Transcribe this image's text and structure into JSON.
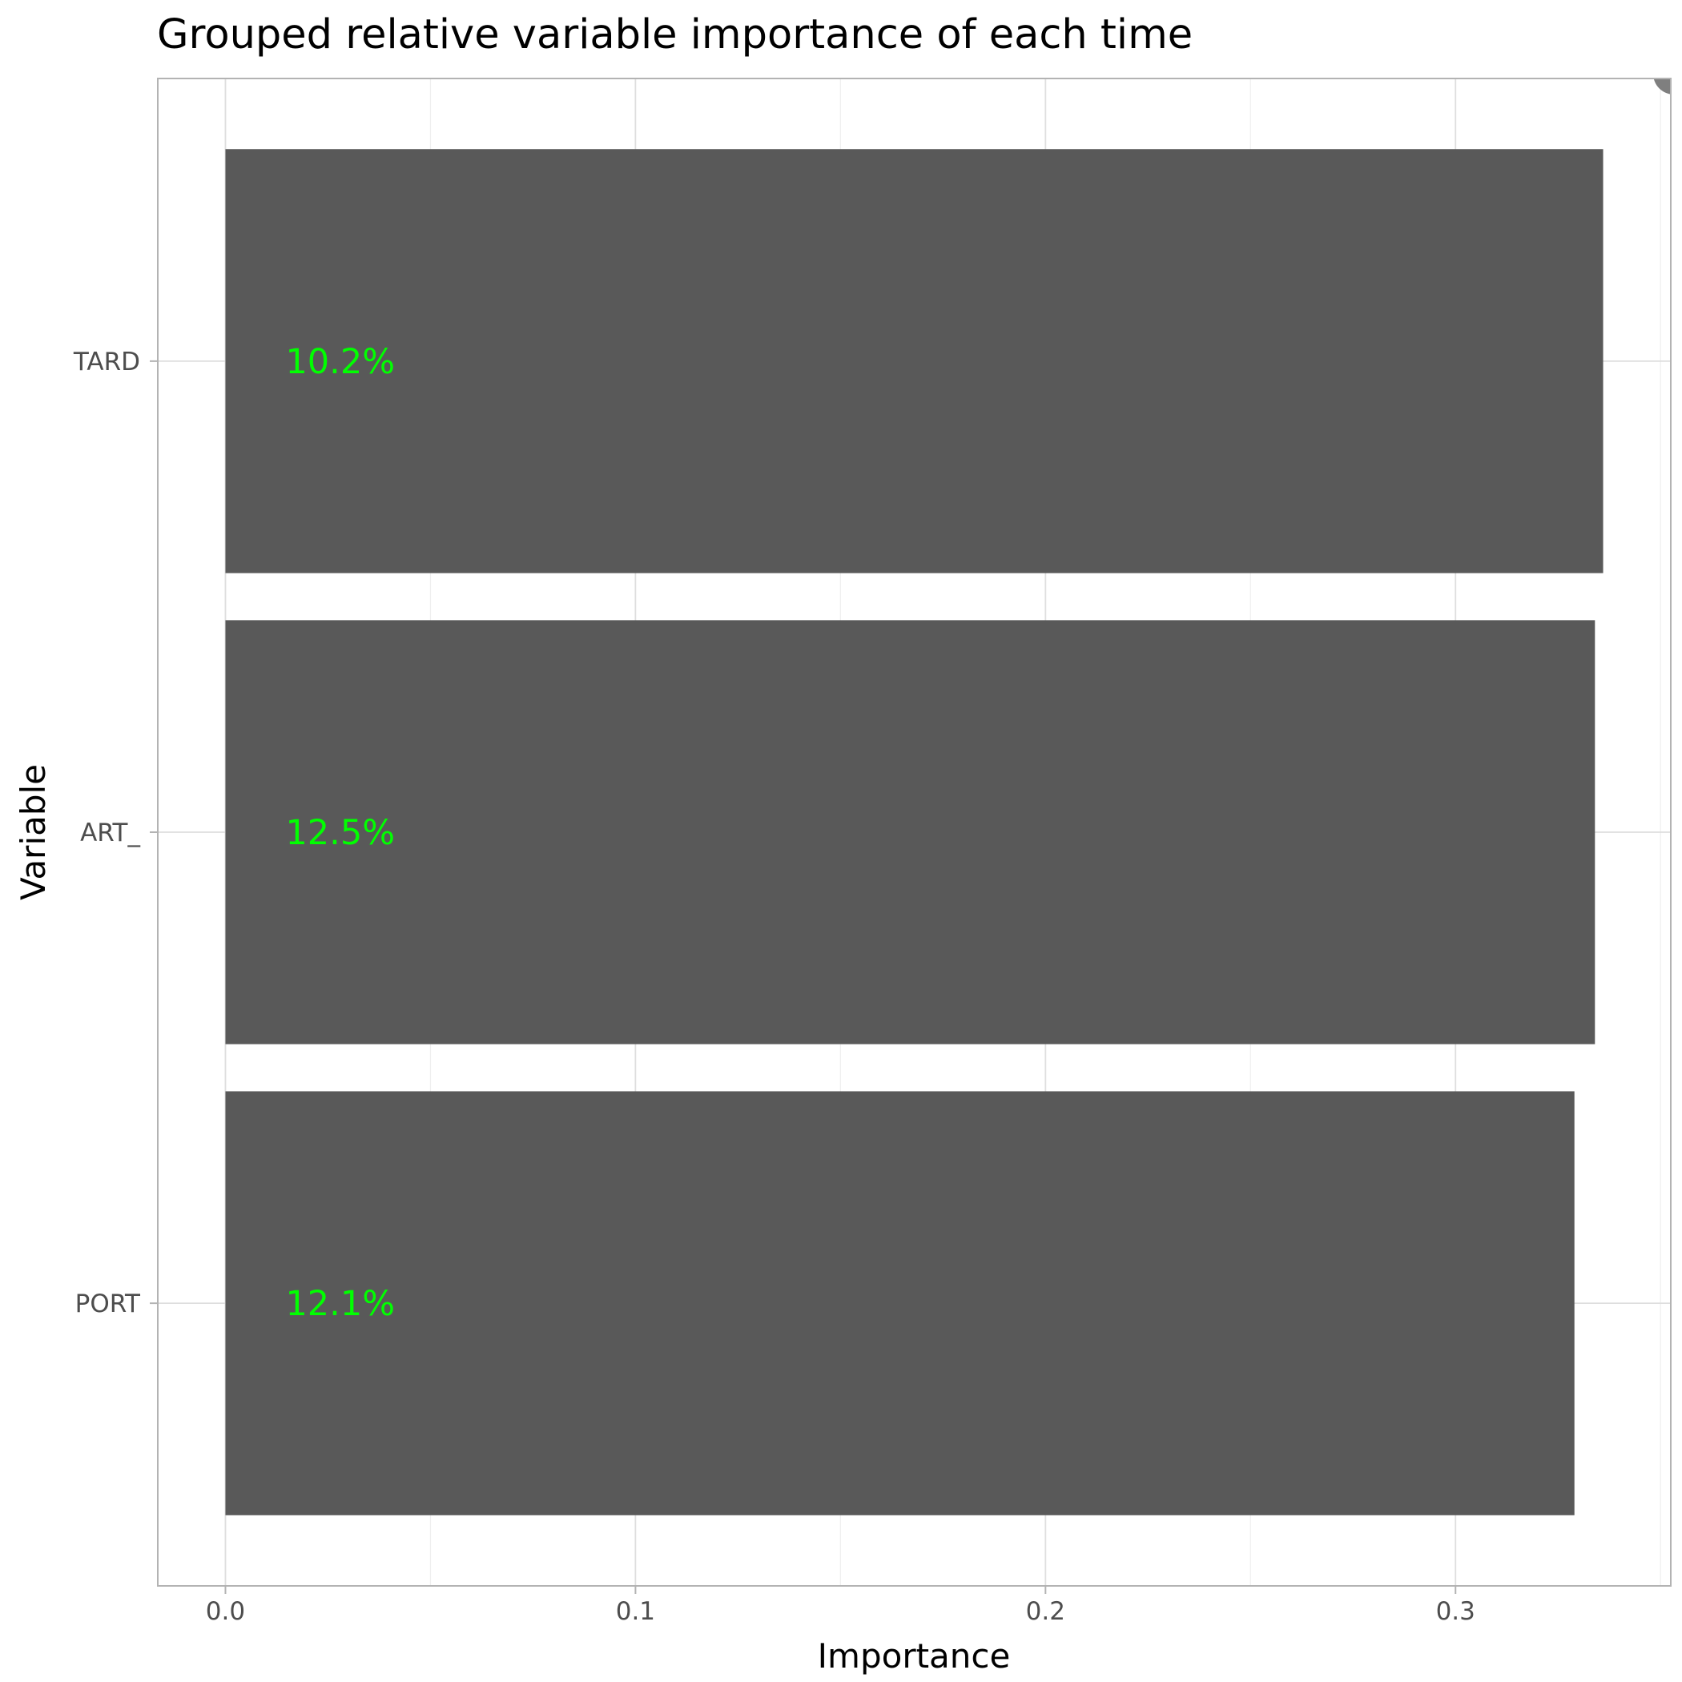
{
  "chart_data": {
    "type": "bar",
    "orientation": "horizontal",
    "title": "Grouped relative variable importance of each time",
    "xlabel": "Importance",
    "ylabel": "Variable",
    "categories": [
      "TARD",
      "ART_",
      "PORT"
    ],
    "values": [
      0.336,
      0.334,
      0.329
    ],
    "bar_labels": [
      "10.2%",
      "12.5%",
      "12.1%"
    ],
    "xlim": [
      -0.0165,
      0.3525
    ],
    "xticks": [
      0.0,
      0.1,
      0.2,
      0.3
    ],
    "xtick_labels": [
      "0.0",
      "0.1",
      "0.2",
      "0.3"
    ],
    "grid": true,
    "legend": "none",
    "colors": {
      "bar": "#595959",
      "label": "#00ff00",
      "panel_border": "#b3b3b3",
      "grid_major": "#dedede",
      "grid_minor": "#efefef",
      "tick_text": "#4d4d4d",
      "marker": "#7f7f7f"
    }
  }
}
